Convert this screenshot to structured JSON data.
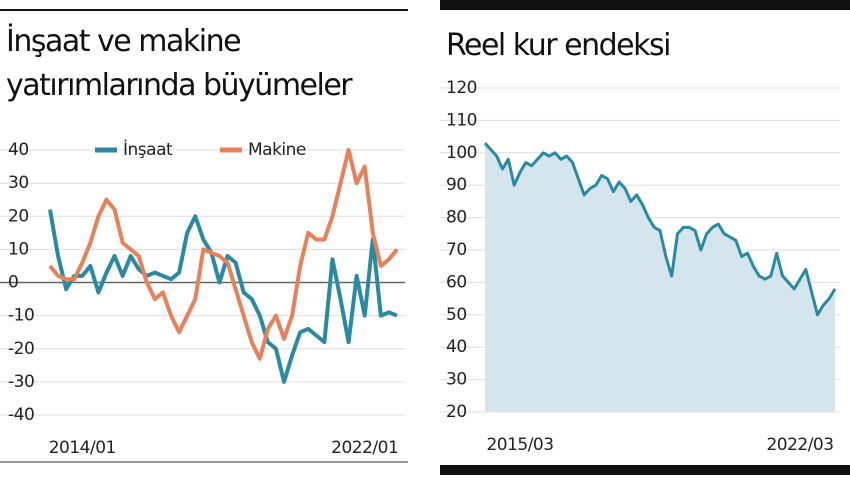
{
  "chart_data": [
    {
      "type": "line",
      "title": "İnşaat ve makine yatırımlarında büyümeler",
      "categories": [
        null,
        null,
        null,
        null,
        "2014/01",
        null,
        null,
        null,
        null,
        null,
        null,
        null,
        null,
        null,
        null,
        null,
        null,
        null,
        null,
        null,
        null,
        null,
        null,
        null,
        null,
        null,
        null,
        null,
        null,
        null,
        null,
        null,
        null,
        null,
        null,
        null,
        null,
        null,
        null,
        "2022/01",
        null,
        null,
        null,
        null
      ],
      "series": [
        {
          "name": "İnşaat",
          "color": "#2a8aa3",
          "values": [
            22,
            8,
            -2,
            2,
            2,
            5,
            -3,
            3,
            8,
            2,
            8,
            4,
            2,
            3,
            2,
            1,
            3,
            15,
            20,
            13,
            9,
            0,
            8,
            6,
            -3,
            -5,
            -10,
            -18,
            -20,
            -30,
            -22,
            -15,
            -14,
            -16,
            -18,
            7,
            -5,
            -18,
            2,
            -10,
            13,
            -10,
            -9,
            -10
          ]
        },
        {
          "name": "Makine",
          "color": "#e8805a",
          "values": [
            5,
            2,
            1,
            1,
            6,
            12,
            20,
            25,
            22,
            12,
            10,
            8,
            0,
            -5,
            -3,
            -10,
            -15,
            -10,
            -5,
            10,
            9,
            8,
            6,
            -2,
            -10,
            -18,
            -23,
            -14,
            -10,
            -17,
            -10,
            5,
            15,
            13,
            13,
            20,
            30,
            40,
            30,
            35,
            15,
            5,
            7,
            10
          ]
        }
      ],
      "ylim": [
        -40,
        40
      ],
      "yticks": [
        40,
        30,
        20,
        10,
        0,
        -10,
        -20,
        -30,
        -40
      ],
      "grid": true
    },
    {
      "type": "area",
      "title": "Reel kur endeksi",
      "categories": [
        null,
        null,
        null,
        null,
        null,
        null,
        "2015/03",
        null,
        null,
        null,
        null,
        null,
        null,
        null,
        null,
        null,
        null,
        null,
        null,
        null,
        null,
        null,
        null,
        null,
        null,
        null,
        null,
        null,
        null,
        null,
        null,
        null,
        null,
        null,
        null,
        null,
        null,
        null,
        null,
        null,
        null,
        null,
        null,
        null,
        null,
        null,
        null,
        null,
        null,
        null,
        null,
        null,
        null,
        null,
        "2022/03",
        null,
        null,
        null,
        null,
        null,
        null
      ],
      "values": [
        103,
        101,
        99,
        95,
        98,
        90,
        94,
        97,
        96,
        98,
        100,
        99,
        100,
        98,
        99,
        97,
        92,
        87,
        89,
        90,
        93,
        92,
        88,
        91,
        89,
        85,
        87,
        84,
        80,
        77,
        76,
        68,
        62,
        75,
        77,
        77,
        76,
        70,
        75,
        77,
        78,
        75,
        74,
        73,
        68,
        69,
        65,
        62,
        61,
        62,
        69,
        62,
        60,
        58,
        61,
        64,
        57,
        50,
        53,
        55,
        58
      ],
      "color": "#2a8aa3",
      "fill": "#d4e5ee",
      "ylim": [
        20,
        120
      ],
      "yticks": [
        120,
        110,
        100,
        90,
        80,
        70,
        60,
        50,
        40,
        30,
        20
      ],
      "grid": true
    }
  ]
}
